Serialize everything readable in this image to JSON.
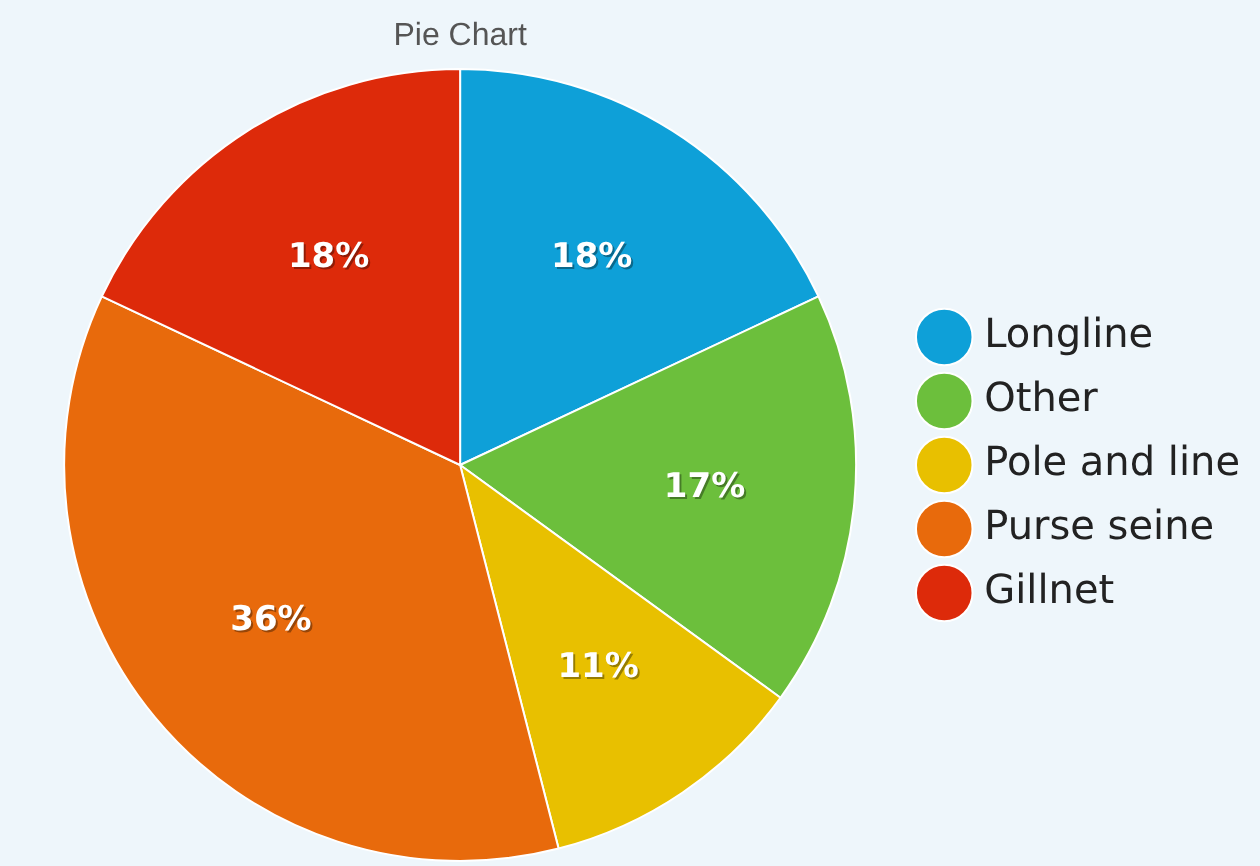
{
  "chart_data": {
    "type": "pie",
    "title": "Pie Chart",
    "categories": [
      "Longline",
      "Other",
      "Pole and line",
      "Purse seine",
      "Gillnet"
    ],
    "values": [
      18,
      17,
      11,
      36,
      18
    ],
    "colors": [
      "#0ea0d8",
      "#6cbf3c",
      "#e8c000",
      "#e86a0c",
      "#dd2a0a"
    ],
    "value_labels": [
      "18%",
      "17%",
      "11%",
      "36%",
      "18%"
    ],
    "legend": "right"
  }
}
